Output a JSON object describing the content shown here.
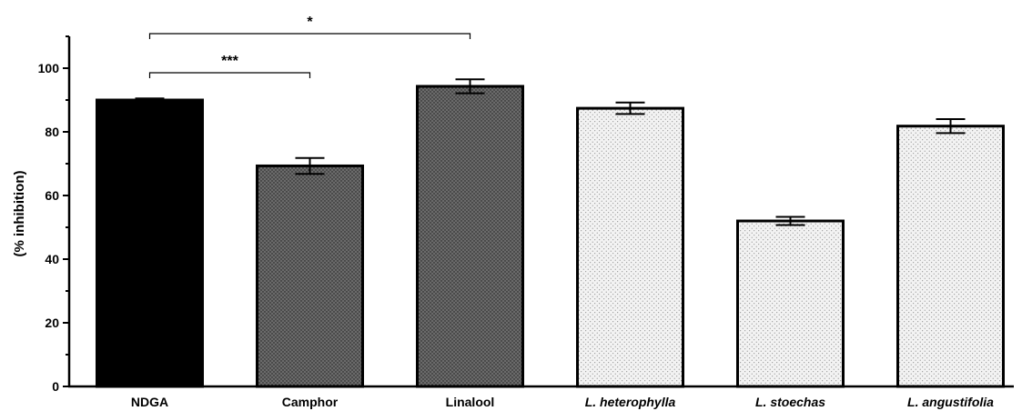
{
  "chart_data": {
    "type": "bar",
    "categories": [
      "NDGA",
      "Camphor",
      "Linalool",
      "L. heterophylla",
      "L. stoechas",
      "L. angustifolia"
    ],
    "italic_categories": [
      false,
      false,
      false,
      true,
      true,
      true
    ],
    "values": [
      90,
      69.3,
      94.3,
      87.4,
      52,
      81.8
    ],
    "errors": [
      0.5,
      2.5,
      2.2,
      1.8,
      1.3,
      2.2
    ],
    "fill_styles": [
      "solid-black",
      "dense-dots",
      "dense-dots",
      "light-dots",
      "light-dots",
      "light-dots"
    ],
    "title": "",
    "xlabel": "",
    "ylabel": "(% inhibition)",
    "ylim": [
      0,
      110
    ],
    "yticks": [
      0,
      20,
      40,
      60,
      80,
      100
    ],
    "grid": false,
    "significance": [
      {
        "from": "NDGA",
        "to": "Camphor",
        "label": "***",
        "level": 1
      },
      {
        "from": "NDGA",
        "to": "Linalool",
        "label": "*",
        "level": 2
      }
    ],
    "colors": {
      "solid": "#000000",
      "dense_bg": "#6b6b6b",
      "light_bg": "#f2f2f2",
      "outline": "#000000"
    }
  }
}
